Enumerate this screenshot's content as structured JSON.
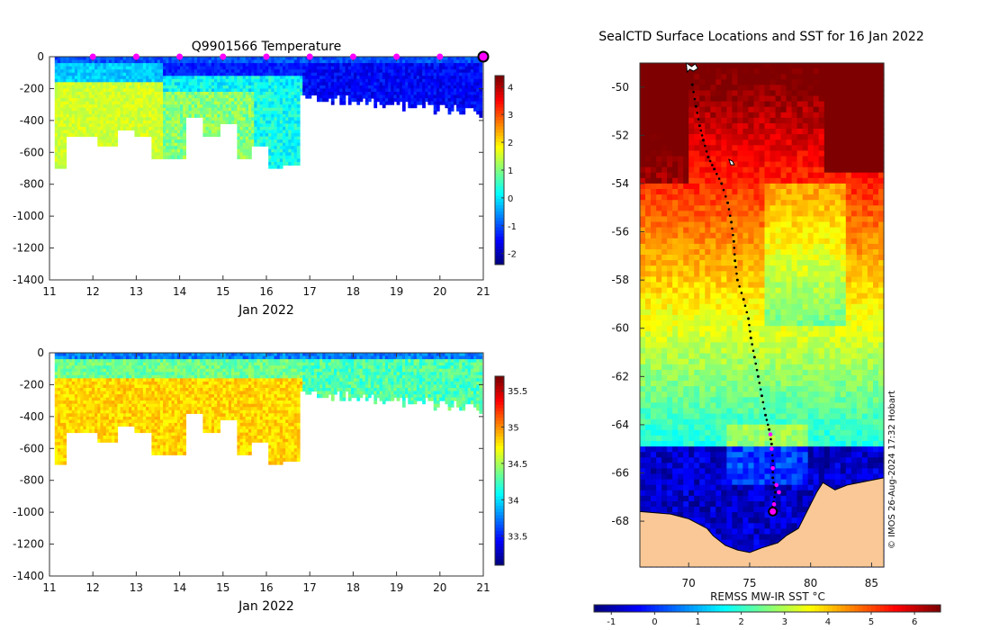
{
  "colors": {
    "jet": [
      "#00007f",
      "#0000ff",
      "#007fff",
      "#00ffff",
      "#7fff7f",
      "#ffff00",
      "#ff7f00",
      "#ff0000",
      "#7f0000"
    ],
    "land": "#f9c896",
    "marker": "#ff00ff",
    "track": "#000000"
  },
  "chart_data": [
    {
      "type": "heatmap",
      "panel": "temperature",
      "title": "Q9901566  Temperature",
      "xlabel": "Jan 2022",
      "ylabel": "",
      "xlim": [
        11,
        21
      ],
      "ylim": [
        -1400,
        0
      ],
      "x_ticks": [
        11,
        12,
        13,
        14,
        15,
        16,
        17,
        18,
        19,
        20,
        21
      ],
      "x_tick_labels": [
        "11",
        "12",
        "13",
        "14",
        "15",
        "16",
        "17",
        "18",
        "19",
        "20",
        "21"
      ],
      "y_ticks": [
        0,
        -200,
        -400,
        -600,
        -800,
        -1000,
        -1200,
        -1400
      ],
      "y_tick_labels": [
        "0",
        "-200",
        "-400",
        "-600",
        "-800",
        "-1000",
        "-1200",
        "-1400"
      ],
      "colorbar": {
        "range": [
          -2.4,
          4.4
        ],
        "ticks": [
          -2,
          -1,
          0,
          1,
          2,
          3,
          4
        ],
        "tick_labels": [
          "-2",
          "-1",
          "0",
          "1",
          "2",
          "3",
          "4"
        ]
      },
      "markers_x": [
        12,
        13,
        14,
        15,
        16,
        17,
        18,
        19,
        20
      ],
      "current_x": 21,
      "profiles": [
        {
          "day": 11.15,
          "max_depth": 700
        },
        {
          "day": 11.5,
          "max_depth": 500
        },
        {
          "day": 11.9,
          "max_depth": 500
        },
        {
          "day": 12.3,
          "max_depth": 550
        },
        {
          "day": 12.7,
          "max_depth": 450
        },
        {
          "day": 13.15,
          "max_depth": 500
        },
        {
          "day": 13.5,
          "max_depth": 630
        },
        {
          "day": 13.9,
          "max_depth": 640
        },
        {
          "day": 14.3,
          "max_depth": 380
        },
        {
          "day": 14.7,
          "max_depth": 500
        },
        {
          "day": 15.1,
          "max_depth": 420
        },
        {
          "day": 15.45,
          "max_depth": 640
        },
        {
          "day": 15.85,
          "max_depth": 560
        },
        {
          "day": 16.2,
          "max_depth": 700
        },
        {
          "day": 16.5,
          "max_depth": 680
        },
        {
          "day": 17.0,
          "max_depth": 230
        },
        {
          "day": 17.5,
          "max_depth": 300
        },
        {
          "day": 18.0,
          "max_depth": 260
        },
        {
          "day": 18.5,
          "max_depth": 270
        },
        {
          "day": 19.0,
          "max_depth": 280
        },
        {
          "day": 19.5,
          "max_depth": 270
        },
        {
          "day": 20.0,
          "max_depth": 280
        },
        {
          "day": 20.5,
          "max_depth": 290
        },
        {
          "day": 20.95,
          "max_depth": 320
        }
      ]
    },
    {
      "type": "heatmap",
      "panel": "salinity",
      "title": "",
      "xlabel": "Jan 2022",
      "xlim": [
        11,
        21
      ],
      "ylim": [
        -1400,
        0
      ],
      "x_ticks": [
        11,
        12,
        13,
        14,
        15,
        16,
        17,
        18,
        19,
        20,
        21
      ],
      "x_tick_labels": [
        "11",
        "12",
        "13",
        "14",
        "15",
        "16",
        "17",
        "18",
        "19",
        "20",
        "21"
      ],
      "y_ticks": [
        0,
        -200,
        -400,
        -600,
        -800,
        -1000,
        -1200,
        -1400
      ],
      "y_tick_labels": [
        "0",
        "-200",
        "-400",
        "-600",
        "-800",
        "-1000",
        "-1200",
        "-1400"
      ],
      "colorbar": {
        "range": [
          33.1,
          35.7
        ],
        "ticks": [
          33.5,
          34,
          34.5,
          35,
          35.5
        ],
        "tick_labels": [
          "33.5",
          "34",
          "34.5",
          "35",
          "35.5"
        ]
      }
    },
    {
      "type": "heatmap",
      "panel": "map",
      "title": "SealCTD Surface Locations and SST for 16 Jan 2022",
      "xlabel": "",
      "xlim": [
        66,
        86
      ],
      "ylim": [
        -69.9,
        -49
      ],
      "x_ticks": [
        70,
        75,
        80,
        85
      ],
      "x_tick_labels": [
        "70",
        "75",
        "80",
        "85"
      ],
      "y_ticks": [
        -50,
        -52,
        -54,
        -56,
        -58,
        -60,
        -62,
        -64,
        -66,
        -68
      ],
      "y_tick_labels": [
        "-50",
        "-52",
        "-54",
        "-56",
        "-58",
        "-60",
        "-62",
        "-64",
        "-66",
        "-68"
      ],
      "colorbar": {
        "label": "REMSS MW-IR SST °C",
        "range": [
          -1.4,
          6.6
        ],
        "ticks": [
          -1,
          0,
          1,
          2,
          3,
          4,
          5,
          6
        ],
        "tick_labels": [
          "-1",
          "0",
          "1",
          "2",
          "3",
          "4",
          "5",
          "6"
        ]
      },
      "copyright": "© IMOS 26-Aug-2024 17:32 Hobart",
      "track": [
        [
          70.3,
          -49.9
        ],
        [
          70.6,
          -50.8
        ],
        [
          70.9,
          -51.6
        ],
        [
          71.2,
          -52.2
        ],
        [
          71.6,
          -52.9
        ],
        [
          72.1,
          -53.4
        ],
        [
          72.7,
          -54.0
        ],
        [
          73.2,
          -54.8
        ],
        [
          73.5,
          -55.6
        ],
        [
          73.7,
          -56.4
        ],
        [
          73.8,
          -57.2
        ],
        [
          74.0,
          -58.0
        ],
        [
          74.5,
          -58.8
        ],
        [
          74.9,
          -59.6
        ],
        [
          75.1,
          -60.4
        ],
        [
          75.4,
          -61.2
        ],
        [
          75.7,
          -62.0
        ],
        [
          76.0,
          -62.8
        ],
        [
          76.3,
          -63.6
        ],
        [
          76.6,
          -64.2
        ],
        [
          76.8,
          -64.8
        ],
        [
          76.9,
          -65.5
        ],
        [
          76.9,
          -66.2
        ],
        [
          77.1,
          -66.8
        ],
        [
          76.9,
          -67.4
        ]
      ],
      "recent_track": [
        [
          76.7,
          -64.4
        ],
        [
          76.8,
          -65.0
        ],
        [
          76.9,
          -65.8
        ],
        [
          77.2,
          -66.5
        ],
        [
          77.4,
          -66.8
        ],
        [
          77.0,
          -67.3
        ]
      ],
      "current_position": [
        76.9,
        -67.6
      ]
    }
  ]
}
